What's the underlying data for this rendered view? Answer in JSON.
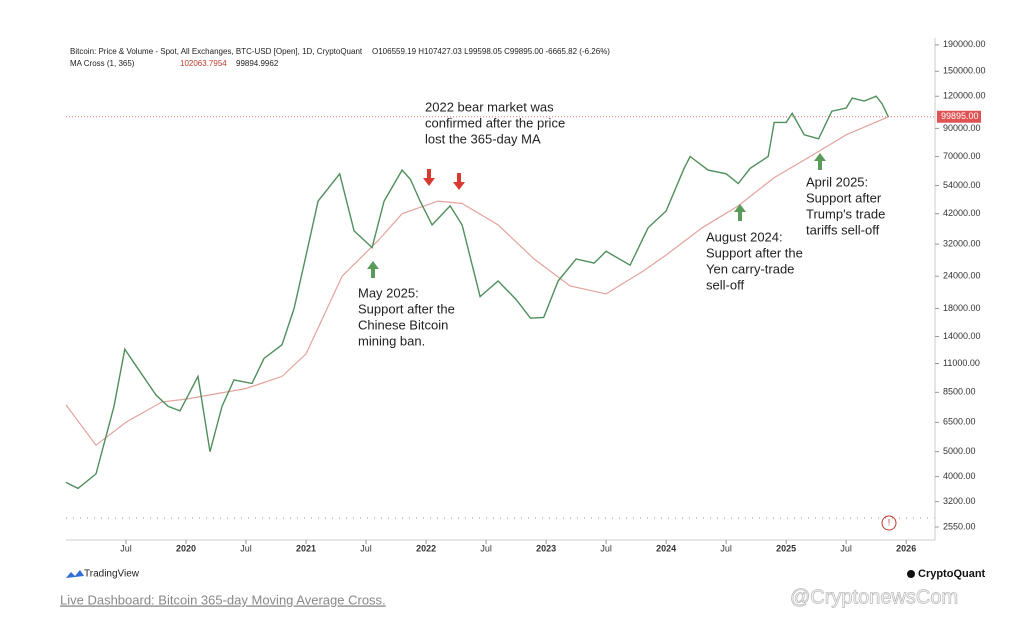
{
  "chart_data": {
    "type": "line",
    "legend_title": "Bitcoin: Price & Volume - Spot, All Exchanges, BTC-USD [Open], 1D, CryptoQuant",
    "legend_values": "O106559.19 H107427.03 L99598.05 C99895.00 -6665.82 (-6.26%)",
    "ma_label": "MA Cross (1, 365)",
    "ma_value_1": "102063.7954",
    "ma_value_2": "99894.9962",
    "log_scale": true,
    "xlim": [
      2019.0,
      2026.24
    ],
    "ylim": [
      2270,
      202000
    ],
    "xticks": [
      {
        "value": 2019.5,
        "label": "Jul"
      },
      {
        "value": 2020,
        "label": "2020"
      },
      {
        "value": 2020.5,
        "label": "Jul"
      },
      {
        "value": 2021,
        "label": "2021"
      },
      {
        "value": 2021.5,
        "label": "Jul"
      },
      {
        "value": 2022,
        "label": "2022"
      },
      {
        "value": 2022.5,
        "label": "Jul"
      },
      {
        "value": 2023,
        "label": "2023"
      },
      {
        "value": 2023.5,
        "label": "Jul"
      },
      {
        "value": 2024,
        "label": "2024"
      },
      {
        "value": 2024.5,
        "label": "Jul"
      },
      {
        "value": 2025,
        "label": "2025"
      },
      {
        "value": 2025.5,
        "label": "Jul"
      },
      {
        "value": 2026,
        "label": "2026"
      }
    ],
    "yticks": [
      {
        "value": 2550,
        "label": "2550.00"
      },
      {
        "value": 3200,
        "label": "3200.00"
      },
      {
        "value": 4000,
        "label": "4000.00"
      },
      {
        "value": 5000,
        "label": "5000.00"
      },
      {
        "value": 6500,
        "label": "6500.00"
      },
      {
        "value": 8500,
        "label": "8500.00"
      },
      {
        "value": 11000,
        "label": "11000.00"
      },
      {
        "value": 14000,
        "label": "14000.00"
      },
      {
        "value": 18000,
        "label": "18000.00"
      },
      {
        "value": 24000,
        "label": "24000.00"
      },
      {
        "value": 32000,
        "label": "32000.00"
      },
      {
        "value": 42000,
        "label": "42000.00"
      },
      {
        "value": 54000,
        "label": "54000.00"
      },
      {
        "value": 70000,
        "label": "70000.00"
      },
      {
        "value": 90000,
        "label": "90000.00"
      },
      {
        "value": 120000,
        "label": "120000.00"
      },
      {
        "value": 150000,
        "label": "150000.00"
      },
      {
        "value": 190000,
        "label": "190000.00"
      }
    ],
    "last_price": {
      "value": 99895,
      "label": "99895.00"
    },
    "series": [
      {
        "name": "Price",
        "color": "#4f8f5c",
        "x": [
          2019.0,
          2019.1,
          2019.25,
          2019.4,
          2019.49,
          2019.6,
          2019.75,
          2019.85,
          2019.95,
          2020.1,
          2020.2,
          2020.3,
          2020.4,
          2020.55,
          2020.65,
          2020.8,
          2020.9,
          2021.0,
          2021.1,
          2021.28,
          2021.4,
          2021.55,
          2021.65,
          2021.8,
          2021.87,
          2021.95,
          2022.05,
          2022.2,
          2022.3,
          2022.45,
          2022.6,
          2022.75,
          2022.87,
          2022.98,
          2023.1,
          2023.25,
          2023.4,
          2023.5,
          2023.7,
          2023.85,
          2024.0,
          2024.15,
          2024.2,
          2024.35,
          2024.5,
          2024.6,
          2024.7,
          2024.85,
          2024.9,
          2025.0,
          2025.05,
          2025.15,
          2025.27,
          2025.38,
          2025.5,
          2025.55,
          2025.65,
          2025.75,
          2025.8,
          2025.85
        ],
        "values": [
          3800,
          3600,
          4100,
          7500,
          12500,
          10500,
          8300,
          7500,
          7200,
          9800,
          5000,
          7500,
          9500,
          9200,
          11500,
          13000,
          18000,
          29000,
          47000,
          60000,
          36000,
          31000,
          47000,
          62000,
          57000,
          47000,
          38000,
          45000,
          38000,
          20000,
          23000,
          19500,
          16500,
          16600,
          23000,
          28000,
          27000,
          30000,
          26500,
          37000,
          43000,
          63000,
          70000,
          62000,
          60000,
          55000,
          63000,
          70000,
          95000,
          95000,
          103000,
          85000,
          82000,
          105000,
          108000,
          118000,
          115000,
          120000,
          112000,
          100000
        ]
      },
      {
        "name": "MA Cross (1, 365)",
        "color": "#e3a39d",
        "x": [
          2019.0,
          2019.25,
          2019.5,
          2019.8,
          2020.0,
          2020.5,
          2020.8,
          2021.0,
          2021.3,
          2021.6,
          2021.8,
          2022.1,
          2022.3,
          2022.6,
          2022.9,
          2023.2,
          2023.5,
          2023.8,
          2024.0,
          2024.3,
          2024.6,
          2024.9,
          2025.2,
          2025.5,
          2025.85
        ],
        "values": [
          7600,
          5300,
          6500,
          7800,
          8000,
          8800,
          9800,
          12000,
          24000,
          33000,
          42000,
          47000,
          46000,
          38000,
          28000,
          22000,
          20500,
          25000,
          29000,
          37000,
          45000,
          58000,
          70000,
          85000,
          99800
        ]
      }
    ],
    "annotations": [
      {
        "lines": [
          "May 2025:",
          "Support after the",
          "Chinese Bitcoin",
          "mining ban."
        ]
      },
      {
        "lines": [
          "2022 bear market was",
          "confirmed after the price",
          "lost the 365-day MA"
        ]
      },
      {
        "lines": [
          "August 2024:",
          "Support after the",
          "Yen carry-trade",
          "sell-off"
        ]
      },
      {
        "lines": [
          "April 2025:",
          "Support after",
          "Trump's trade",
          "tariffs sell-off"
        ]
      }
    ],
    "brand_left": "TradingView",
    "brand_right": "CryptoQuant",
    "link_text": "Live Dashboard: Bitcoin 365-day Moving Average Cross.",
    "watermark": "@CryptonewsCom"
  }
}
